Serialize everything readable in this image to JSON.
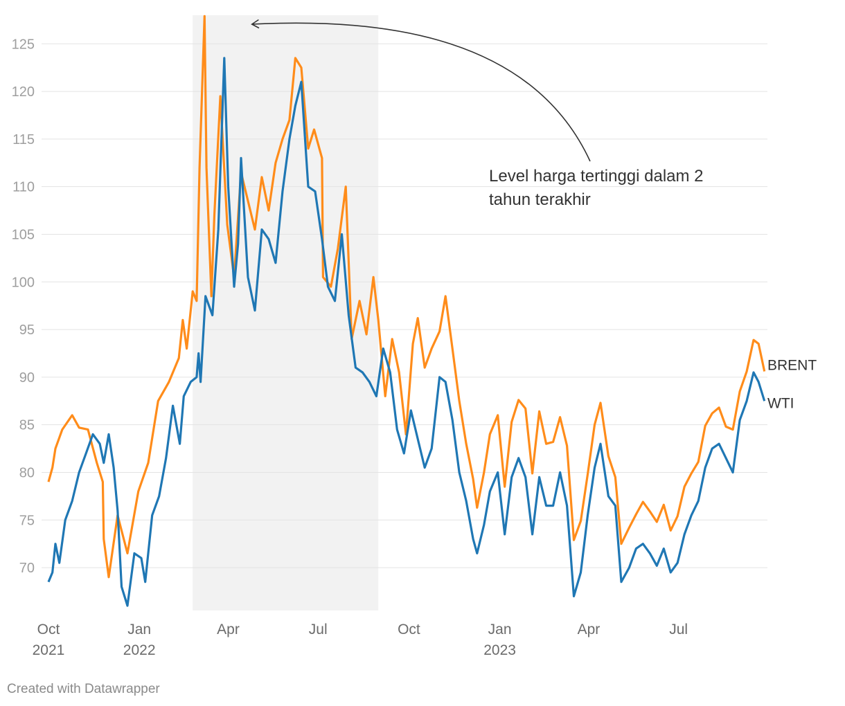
{
  "footer": {
    "credit": "Created with Datawrapper"
  },
  "chart_data": {
    "type": "line",
    "title": "",
    "xlabel": "",
    "ylabel": "",
    "x_range": [
      "2021-09-24",
      "2023-09-29"
    ],
    "ylim": [
      65.5,
      128
    ],
    "y_ticks": [
      70,
      75,
      80,
      85,
      90,
      95,
      100,
      105,
      110,
      115,
      120,
      125
    ],
    "grid": true,
    "x_ticks": [
      {
        "date": "2021-10-01",
        "label": "Oct",
        "sublabel": "2021"
      },
      {
        "date": "2022-01-01",
        "label": "Jan",
        "sublabel": "2022"
      },
      {
        "date": "2022-04-01",
        "label": "Apr",
        "sublabel": ""
      },
      {
        "date": "2022-07-01",
        "label": "Jul",
        "sublabel": ""
      },
      {
        "date": "2022-10-01",
        "label": "Oct",
        "sublabel": ""
      },
      {
        "date": "2023-01-01",
        "label": "Jan",
        "sublabel": "2023"
      },
      {
        "date": "2023-04-01",
        "label": "Apr",
        "sublabel": ""
      },
      {
        "date": "2023-07-01",
        "label": "Jul",
        "sublabel": ""
      }
    ],
    "highlight_range": [
      "2022-02-24",
      "2022-08-31"
    ],
    "annotation": {
      "lines": [
        "Level harga tertinggi dalam 2",
        "tahun terakhir"
      ],
      "points_to": {
        "date": "2022-04-18",
        "value": 127
      }
    },
    "series": [
      {
        "name": "BRENT",
        "color": "#ff8c1a",
        "points": [
          [
            "2021-10-01",
            79
          ],
          [
            "2021-10-05",
            80.5
          ],
          [
            "2021-10-08",
            82.5
          ],
          [
            "2021-10-15",
            84.5
          ],
          [
            "2021-10-25",
            86
          ],
          [
            "2021-11-01",
            84.7
          ],
          [
            "2021-11-10",
            84.5
          ],
          [
            "2021-11-19",
            81
          ],
          [
            "2021-11-25",
            79
          ],
          [
            "2021-11-26",
            73
          ],
          [
            "2021-12-01",
            69
          ],
          [
            "2021-12-10",
            75.5
          ],
          [
            "2021-12-20",
            71.5
          ],
          [
            "2021-12-31",
            78
          ],
          [
            "2022-01-10",
            81
          ],
          [
            "2022-01-20",
            87.5
          ],
          [
            "2022-01-31",
            89.5
          ],
          [
            "2022-02-10",
            92
          ],
          [
            "2022-02-14",
            96
          ],
          [
            "2022-02-18",
            93
          ],
          [
            "2022-02-24",
            99
          ],
          [
            "2022-02-28",
            98
          ],
          [
            "2022-03-03",
            112
          ],
          [
            "2022-03-08",
            127.9
          ],
          [
            "2022-03-10",
            112
          ],
          [
            "2022-03-15",
            98.5
          ],
          [
            "2022-03-18",
            107
          ],
          [
            "2022-03-24",
            119.5
          ],
          [
            "2022-03-31",
            106
          ],
          [
            "2022-04-07",
            100.5
          ],
          [
            "2022-04-14",
            111.5
          ],
          [
            "2022-04-21",
            108.5
          ],
          [
            "2022-04-28",
            105.5
          ],
          [
            "2022-05-05",
            111
          ],
          [
            "2022-05-12",
            107.5
          ],
          [
            "2022-05-19",
            112.5
          ],
          [
            "2022-05-26",
            115
          ],
          [
            "2022-06-02",
            117
          ],
          [
            "2022-06-08",
            123.5
          ],
          [
            "2022-06-14",
            122.5
          ],
          [
            "2022-06-21",
            114
          ],
          [
            "2022-06-27",
            116
          ],
          [
            "2022-07-05",
            113
          ],
          [
            "2022-07-06",
            100.5
          ],
          [
            "2022-07-14",
            99.5
          ],
          [
            "2022-07-21",
            103.5
          ],
          [
            "2022-07-29",
            110
          ],
          [
            "2022-08-04",
            94
          ],
          [
            "2022-08-12",
            98
          ],
          [
            "2022-08-19",
            94.5
          ],
          [
            "2022-08-26",
            100.5
          ],
          [
            "2022-08-31",
            96
          ],
          [
            "2022-09-07",
            88
          ],
          [
            "2022-09-14",
            94
          ],
          [
            "2022-09-21",
            90.5
          ],
          [
            "2022-09-28",
            84
          ],
          [
            "2022-10-05",
            93.5
          ],
          [
            "2022-10-10",
            96.2
          ],
          [
            "2022-10-17",
            91
          ],
          [
            "2022-10-24",
            93
          ],
          [
            "2022-11-01",
            94.8
          ],
          [
            "2022-11-07",
            98.5
          ],
          [
            "2022-11-14",
            93
          ],
          [
            "2022-11-21",
            87.5
          ],
          [
            "2022-11-28",
            83
          ],
          [
            "2022-12-05",
            79.3
          ],
          [
            "2022-12-09",
            76.3
          ],
          [
            "2022-12-16",
            80
          ],
          [
            "2022-12-22",
            84
          ],
          [
            "2022-12-30",
            86
          ],
          [
            "2023-01-06",
            78.5
          ],
          [
            "2023-01-13",
            85.3
          ],
          [
            "2023-01-20",
            87.6
          ],
          [
            "2023-01-27",
            86.7
          ],
          [
            "2023-02-03",
            79.9
          ],
          [
            "2023-02-10",
            86.4
          ],
          [
            "2023-02-17",
            83
          ],
          [
            "2023-02-24",
            83.2
          ],
          [
            "2023-03-03",
            85.8
          ],
          [
            "2023-03-10",
            82.8
          ],
          [
            "2023-03-17",
            72.9
          ],
          [
            "2023-03-24",
            74.9
          ],
          [
            "2023-03-31",
            79.8
          ],
          [
            "2023-04-07",
            85
          ],
          [
            "2023-04-13",
            87.3
          ],
          [
            "2023-04-21",
            81.7
          ],
          [
            "2023-04-28",
            79.5
          ],
          [
            "2023-05-04",
            72.5
          ],
          [
            "2023-05-12",
            74.2
          ],
          [
            "2023-05-19",
            75.6
          ],
          [
            "2023-05-26",
            76.9
          ],
          [
            "2023-06-02",
            75.9
          ],
          [
            "2023-06-09",
            74.8
          ],
          [
            "2023-06-16",
            76.6
          ],
          [
            "2023-06-23",
            73.9
          ],
          [
            "2023-06-30",
            75.4
          ],
          [
            "2023-07-07",
            78.5
          ],
          [
            "2023-07-14",
            79.9
          ],
          [
            "2023-07-21",
            81.1
          ],
          [
            "2023-07-28",
            84.9
          ],
          [
            "2023-08-04",
            86.2
          ],
          [
            "2023-08-11",
            86.8
          ],
          [
            "2023-08-18",
            84.8
          ],
          [
            "2023-08-25",
            84.5
          ],
          [
            "2023-09-01",
            88.5
          ],
          [
            "2023-09-08",
            90.6
          ],
          [
            "2023-09-15",
            93.9
          ],
          [
            "2023-09-20",
            93.5
          ],
          [
            "2023-09-26",
            90.6
          ]
        ]
      },
      {
        "name": "WTI",
        "color": "#1f77b4",
        "points": [
          [
            "2021-10-01",
            68.5
          ],
          [
            "2021-10-05",
            69.5
          ],
          [
            "2021-10-08",
            72.5
          ],
          [
            "2021-10-12",
            70.5
          ],
          [
            "2021-10-18",
            75
          ],
          [
            "2021-10-25",
            77
          ],
          [
            "2021-11-01",
            80
          ],
          [
            "2021-11-08",
            82
          ],
          [
            "2021-11-15",
            84
          ],
          [
            "2021-11-22",
            83
          ],
          [
            "2021-11-26",
            81
          ],
          [
            "2021-12-01",
            84
          ],
          [
            "2021-12-06",
            80.5
          ],
          [
            "2021-12-10",
            76
          ],
          [
            "2021-12-14",
            68
          ],
          [
            "2021-12-20",
            66
          ],
          [
            "2021-12-27",
            71.5
          ],
          [
            "2022-01-03",
            71
          ],
          [
            "2022-01-07",
            68.5
          ],
          [
            "2022-01-14",
            75.5
          ],
          [
            "2022-01-21",
            77.5
          ],
          [
            "2022-01-28",
            81.5
          ],
          [
            "2022-02-04",
            87
          ],
          [
            "2022-02-11",
            83
          ],
          [
            "2022-02-15",
            88
          ],
          [
            "2022-02-22",
            89.5
          ],
          [
            "2022-02-28",
            90
          ],
          [
            "2022-03-02",
            92.5
          ],
          [
            "2022-03-04",
            89.5
          ],
          [
            "2022-03-09",
            98.5
          ],
          [
            "2022-03-16",
            96.5
          ],
          [
            "2022-03-22",
            105.5
          ],
          [
            "2022-03-28",
            123.5
          ],
          [
            "2022-04-01",
            110
          ],
          [
            "2022-04-07",
            99.5
          ],
          [
            "2022-04-11",
            104
          ],
          [
            "2022-04-14",
            113
          ],
          [
            "2022-04-21",
            100.5
          ],
          [
            "2022-04-28",
            97
          ],
          [
            "2022-05-05",
            105.5
          ],
          [
            "2022-05-12",
            104.5
          ],
          [
            "2022-05-19",
            102
          ],
          [
            "2022-05-26",
            109.5
          ],
          [
            "2022-06-02",
            115
          ],
          [
            "2022-06-08",
            118.5
          ],
          [
            "2022-06-14",
            121
          ],
          [
            "2022-06-21",
            110
          ],
          [
            "2022-06-28",
            109.5
          ],
          [
            "2022-07-05",
            104.5
          ],
          [
            "2022-07-11",
            99.5
          ],
          [
            "2022-07-18",
            98
          ],
          [
            "2022-07-25",
            105
          ],
          [
            "2022-08-01",
            96.5
          ],
          [
            "2022-08-08",
            91
          ],
          [
            "2022-08-15",
            90.5
          ],
          [
            "2022-08-22",
            89.5
          ],
          [
            "2022-08-29",
            88
          ],
          [
            "2022-09-05",
            93
          ],
          [
            "2022-09-12",
            90.5
          ],
          [
            "2022-09-19",
            84.5
          ],
          [
            "2022-09-26",
            82
          ],
          [
            "2022-10-03",
            86.5
          ],
          [
            "2022-10-10",
            83.5
          ],
          [
            "2022-10-17",
            80.5
          ],
          [
            "2022-10-24",
            82.5
          ],
          [
            "2022-11-01",
            90
          ],
          [
            "2022-11-07",
            89.5
          ],
          [
            "2022-11-14",
            85.5
          ],
          [
            "2022-11-21",
            80
          ],
          [
            "2022-11-28",
            77
          ],
          [
            "2022-12-05",
            73
          ],
          [
            "2022-12-09",
            71.5
          ],
          [
            "2022-12-16",
            74.5
          ],
          [
            "2022-12-22",
            78
          ],
          [
            "2022-12-30",
            80
          ],
          [
            "2023-01-06",
            73.5
          ],
          [
            "2023-01-13",
            79.5
          ],
          [
            "2023-01-20",
            81.5
          ],
          [
            "2023-01-27",
            79.5
          ],
          [
            "2023-02-03",
            73.5
          ],
          [
            "2023-02-10",
            79.5
          ],
          [
            "2023-02-17",
            76.5
          ],
          [
            "2023-02-24",
            76.5
          ],
          [
            "2023-03-03",
            80
          ],
          [
            "2023-03-10",
            76.5
          ],
          [
            "2023-03-17",
            67
          ],
          [
            "2023-03-24",
            69.5
          ],
          [
            "2023-03-31",
            75.5
          ],
          [
            "2023-04-07",
            80.5
          ],
          [
            "2023-04-13",
            83
          ],
          [
            "2023-04-21",
            77.5
          ],
          [
            "2023-04-28",
            76.5
          ],
          [
            "2023-05-04",
            68.5
          ],
          [
            "2023-05-12",
            70
          ],
          [
            "2023-05-19",
            72
          ],
          [
            "2023-05-26",
            72.5
          ],
          [
            "2023-06-02",
            71.5
          ],
          [
            "2023-06-09",
            70.2
          ],
          [
            "2023-06-16",
            72
          ],
          [
            "2023-06-23",
            69.5
          ],
          [
            "2023-06-30",
            70.5
          ],
          [
            "2023-07-07",
            73.5
          ],
          [
            "2023-07-14",
            75.5
          ],
          [
            "2023-07-21",
            77
          ],
          [
            "2023-07-28",
            80.5
          ],
          [
            "2023-08-04",
            82.5
          ],
          [
            "2023-08-11",
            83
          ],
          [
            "2023-08-18",
            81.5
          ],
          [
            "2023-08-25",
            80
          ],
          [
            "2023-09-01",
            85.5
          ],
          [
            "2023-09-08",
            87.5
          ],
          [
            "2023-09-15",
            90.5
          ],
          [
            "2023-09-20",
            89.5
          ],
          [
            "2023-09-26",
            87.5
          ]
        ]
      }
    ]
  }
}
